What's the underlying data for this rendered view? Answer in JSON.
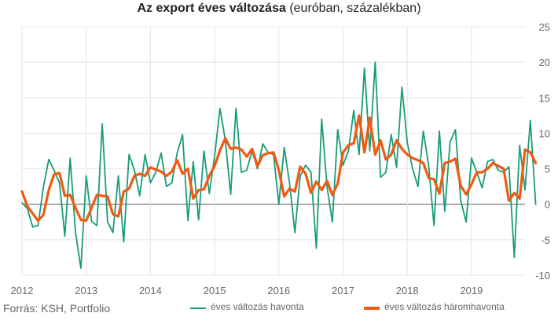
{
  "title_bold": "Az export éves változása",
  "title_rest": " (euróban, százalékban)",
  "source": "Forrás: KSH, Portfolio",
  "colors": {
    "monthly": "#1a9b7a",
    "quarterly": "#f05a12",
    "grid": "#e4e4e4",
    "zero": "#555555"
  },
  "chart_data": {
    "type": "line",
    "title": "Az export éves változása (euróban, százalékban)",
    "xlabel": "",
    "ylabel": "",
    "x_tick_labels": [
      "2012",
      "2013",
      "2014",
      "2015",
      "2016",
      "2017",
      "2018",
      "2019"
    ],
    "x_start": "2012-01",
    "ylim": [
      -10,
      25
    ],
    "y_ticks": [
      -10,
      -5,
      0,
      5,
      10,
      15,
      20,
      25
    ],
    "y_tick_labels": [
      "-10",
      "-5",
      "0",
      "5",
      "10",
      "15",
      "20",
      "25"
    ],
    "y_axis_position": "right",
    "grid": true,
    "legend_position": "bottom",
    "series": [
      {
        "name": "éves változás havonta",
        "color": "#1a9b7a",
        "values": [
          0.2,
          -0.6,
          -3.2,
          -3.0,
          2.4,
          6.3,
          4.8,
          3.0,
          -4.5,
          6.5,
          -4.0,
          -9.0,
          4.0,
          -2.4,
          -3.0,
          11.3,
          -2.5,
          -4.0,
          4.0,
          -5.3,
          7.0,
          4.8,
          1.2,
          7.0,
          3.0,
          4.5,
          7.2,
          2.5,
          3.0,
          7.2,
          9.8,
          -2.3,
          6.0,
          -2.2,
          7.5,
          1.5,
          6.8,
          13.5,
          9.0,
          1.4,
          13.5,
          4.5,
          4.8,
          7.5,
          5.0,
          8.5,
          7.3,
          7.0,
          0.0,
          8.0,
          3.0,
          -4.0,
          4.0,
          5.5,
          4.5,
          -6.2,
          12.0,
          2.5,
          -2.5,
          10.5,
          5.5,
          7.5,
          13.2,
          7.0,
          19.2,
          7.5,
          20.0,
          3.8,
          4.5,
          9.8,
          5.2,
          16.5,
          8.7,
          5.0,
          2.5,
          10.3,
          5.5,
          -3.0,
          10.3,
          -1.0,
          8.8,
          10.5,
          0.5,
          -2.5,
          6.5,
          4.5,
          2.3,
          6.0,
          6.3,
          4.8,
          4.5,
          5.3,
          -7.5,
          8.3,
          2.0,
          11.8,
          0.0
        ]
      },
      {
        "name": "éves változás háromhavonta",
        "color": "#f05a12",
        "values": [
          1.8,
          -0.3,
          -1.3,
          -2.3,
          -1.5,
          2.0,
          4.2,
          4.4,
          1.2,
          1.3,
          -0.5,
          -2.2,
          -2.3,
          -0.5,
          1.3,
          1.2,
          1.1,
          -1.4,
          -1.7,
          1.8,
          2.2,
          4.0,
          4.3,
          4.0,
          5.2,
          4.9,
          4.6,
          4.0,
          4.6,
          6.2,
          4.3,
          5.0,
          0.8,
          2.0,
          2.1,
          4.0,
          5.4,
          7.6,
          9.3,
          7.8,
          8.0,
          7.7,
          6.7,
          7.8,
          5.4,
          6.9,
          7.2,
          7.3,
          4.8,
          1.1,
          2.2,
          1.8,
          5.3,
          4.3,
          1.6,
          3.2,
          2.0,
          3.3,
          1.3,
          2.9,
          7.3,
          8.3,
          8.6,
          12.5,
          7.3,
          12.2,
          7.0,
          9.0,
          6.3,
          7.0,
          9.0,
          7.8,
          7.0,
          6.5,
          6.2,
          5.8,
          3.7,
          3.5,
          1.5,
          5.8,
          6.0,
          6.4,
          2.6,
          1.4,
          2.8,
          4.5,
          4.5,
          5.0,
          5.8,
          5.4,
          5.0,
          0.5,
          1.6,
          0.8,
          7.7,
          7.3,
          5.8
        ]
      }
    ]
  }
}
